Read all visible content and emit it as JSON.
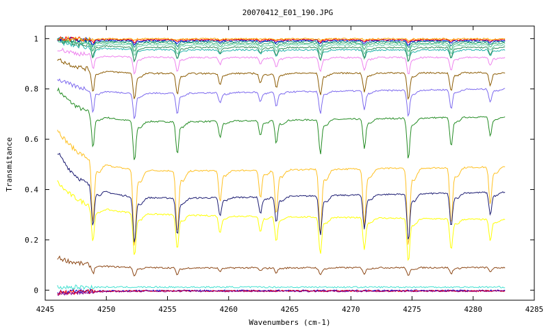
{
  "chart_data": {
    "type": "line",
    "title": "20070412_E01_190.JPG",
    "xlabel": "Wavenumbers (cm-1)",
    "ylabel": "Transmitance",
    "xlim": [
      4245,
      4285
    ],
    "ylim": [
      -0.04,
      1.05
    ],
    "x_ticks": [
      "4245",
      "4250",
      "4255",
      "4260",
      "4265",
      "4270",
      "4275",
      "4280",
      "4285"
    ],
    "y_ticks": [
      "0",
      "0.2",
      "0.4",
      "0.6",
      "0.8",
      "1"
    ],
    "grid": false,
    "legend": "none",
    "x_range_data": [
      4246,
      4282.6
    ],
    "absorption_lines": [
      {
        "x": 4248.9,
        "weight": 1.0
      },
      {
        "x": 4252.3,
        "weight": 1.25
      },
      {
        "x": 4255.8,
        "weight": 1.0
      },
      {
        "x": 4259.3,
        "weight": 0.5
      },
      {
        "x": 4262.6,
        "weight": 0.45
      },
      {
        "x": 4263.9,
        "weight": 0.7
      },
      {
        "x": 4267.5,
        "weight": 1.05
      },
      {
        "x": 4271.1,
        "weight": 0.9
      },
      {
        "x": 4274.7,
        "weight": 1.25
      },
      {
        "x": 4278.2,
        "weight": 0.9
      },
      {
        "x": 4281.4,
        "weight": 0.6
      }
    ],
    "series": [
      {
        "color": "#228b22",
        "left": 0.8,
        "base": 0.665,
        "right": 0.69,
        "depth": 0.14
      },
      {
        "color": "#ffc020",
        "left": 0.64,
        "base": 0.47,
        "right": 0.49,
        "depth": 0.27
      },
      {
        "color": "#191970",
        "left": 0.55,
        "base": 0.36,
        "right": 0.39,
        "depth": 0.16
      },
      {
        "color": "#ffff00",
        "left": 0.43,
        "base": 0.3,
        "right": 0.28,
        "depth": 0.15
      },
      {
        "color": "#8b4513",
        "left": 0.13,
        "base": 0.088,
        "right": 0.09,
        "depth": 0.03
      },
      {
        "color": "#7b68ee",
        "left": 0.84,
        "base": 0.78,
        "right": 0.8,
        "depth": 0.09
      },
      {
        "color": "#8b5a00",
        "left": 0.92,
        "base": 0.86,
        "right": 0.865,
        "depth": 0.09
      },
      {
        "color": "#ee82ee",
        "left": 0.96,
        "base": 0.925,
        "right": 0.925,
        "depth": 0.06
      },
      {
        "color": "#20b2aa",
        "left": 0.99,
        "base": 0.955,
        "right": 0.955,
        "depth": 0.04
      },
      {
        "color": "#2e8b57",
        "left": 0.995,
        "base": 0.965,
        "right": 0.965,
        "depth": 0.05
      },
      {
        "color": "#66cdaa",
        "left": 0.995,
        "base": 0.975,
        "right": 0.975,
        "depth": 0.04
      },
      {
        "color": "#3cb371",
        "left": 1.0,
        "base": 0.982,
        "right": 0.982,
        "depth": 0.03
      },
      {
        "color": "#008080",
        "left": 1.0,
        "base": 0.988,
        "right": 0.988,
        "depth": 0.02
      },
      {
        "color": "#0000cd",
        "left": 1.0,
        "base": 0.993,
        "right": 0.993,
        "depth": 0.015
      },
      {
        "color": "#ff0000",
        "left": 1.0,
        "base": 0.996,
        "right": 0.996,
        "depth": 0.01
      },
      {
        "color": "#ffa500",
        "left": 1.0,
        "base": 0.999,
        "right": 0.999,
        "depth": 0.005
      },
      {
        "color": "#40e0d0",
        "left": 0.012,
        "base": 0.012,
        "right": 0.012,
        "depth": 0.0
      },
      {
        "color": "#0000cd",
        "left": -0.01,
        "base": -0.002,
        "right": -0.002,
        "depth": 0.0
      },
      {
        "color": "#ff0000",
        "left": -0.012,
        "base": -0.003,
        "right": -0.003,
        "depth": 0.0
      },
      {
        "color": "#8b008b",
        "left": -0.014,
        "base": -0.004,
        "right": -0.004,
        "depth": 0.0
      }
    ]
  }
}
